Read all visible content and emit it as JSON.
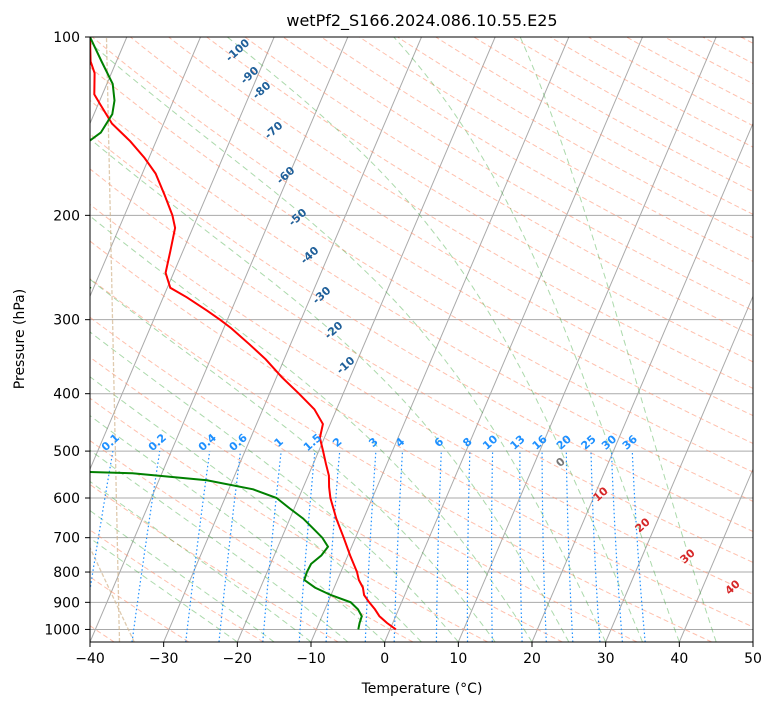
{
  "chart_data": {
    "type": "line",
    "subtype": "skew-T log-P diagram",
    "title": "wetPf2_S166.2024.086.10.55.E25",
    "xlabel": "Temperature (°C)",
    "ylabel": "Pressure (hPa)",
    "xlim": [
      -40,
      50
    ],
    "ylim": [
      1050,
      100
    ],
    "y_scale": "log",
    "grid": true,
    "x_ticks": [
      -40,
      -30,
      -20,
      -10,
      0,
      10,
      20,
      30,
      40,
      50
    ],
    "x_tick_labels": [
      "−40",
      "−30",
      "−20",
      "−10",
      "0",
      "10",
      "20",
      "30",
      "40",
      "50"
    ],
    "y_ticks": [
      100,
      200,
      300,
      400,
      500,
      600,
      700,
      800,
      900,
      1000
    ],
    "y_tick_labels": [
      "100",
      "200",
      "300",
      "400",
      "500",
      "600",
      "700",
      "800",
      "900",
      "1000"
    ],
    "colors": {
      "temperature": "#ff0000",
      "dewpoint": "#008000",
      "isotherm": "#aaaaaa",
      "dry_adiabat": "#ff8c69",
      "moist_adiabat": "#2ca02c",
      "mixing_ratio": "#1e90ff",
      "theta_label": "#1f5f99",
      "reference": "#d2b48c",
      "red_label": "#d62728"
    },
    "series": [
      {
        "key": "temperature",
        "points": [
          {
            "p": 1000,
            "t": 0.8
          },
          {
            "p": 975,
            "t": -0.8
          },
          {
            "p": 950,
            "t": -2.2
          },
          {
            "p": 925,
            "t": -3.2
          },
          {
            "p": 900,
            "t": -4.4
          },
          {
            "p": 875,
            "t": -5.5
          },
          {
            "p": 850,
            "t": -6.1
          },
          {
            "p": 825,
            "t": -7.1
          },
          {
            "p": 800,
            "t": -7.8
          },
          {
            "p": 750,
            "t": -9.7
          },
          {
            "p": 700,
            "t": -11.6
          },
          {
            "p": 650,
            "t": -13.7
          },
          {
            "p": 600,
            "t": -15.7
          },
          {
            "p": 575,
            "t": -16.5
          },
          {
            "p": 550,
            "t": -17.2
          },
          {
            "p": 525,
            "t": -18.3
          },
          {
            "p": 500,
            "t": -19.4
          },
          {
            "p": 475,
            "t": -20.6
          },
          {
            "p": 450,
            "t": -21.0
          },
          {
            "p": 425,
            "t": -23.0
          },
          {
            "p": 400,
            "t": -26.0
          },
          {
            "p": 375,
            "t": -29.3
          },
          {
            "p": 350,
            "t": -32.5
          },
          {
            "p": 330,
            "t": -35.6
          },
          {
            "p": 310,
            "t": -39.0
          },
          {
            "p": 300,
            "t": -41.0
          },
          {
            "p": 290,
            "t": -43.2
          },
          {
            "p": 275,
            "t": -46.8
          },
          {
            "p": 265,
            "t": -49.6
          },
          {
            "p": 250,
            "t": -51.1
          },
          {
            "p": 230,
            "t": -51.7
          },
          {
            "p": 210,
            "t": -52.4
          },
          {
            "p": 200,
            "t": -53.5
          },
          {
            "p": 185,
            "t": -55.7
          },
          {
            "p": 170,
            "t": -58.2
          },
          {
            "p": 160,
            "t": -60.6
          },
          {
            "p": 150,
            "t": -63.5
          },
          {
            "p": 140,
            "t": -67.0
          },
          {
            "p": 130,
            "t": -69.7
          },
          {
            "p": 125,
            "t": -71.1
          },
          {
            "p": 115,
            "t": -72.3
          },
          {
            "p": 110,
            "t": -73.5
          },
          {
            "p": 100,
            "t": -75.0
          }
        ]
      },
      {
        "key": "dewpoint",
        "points": [
          {
            "p": 1000,
            "t": -4.3
          },
          {
            "p": 975,
            "t": -4.5
          },
          {
            "p": 950,
            "t": -4.6
          },
          {
            "p": 925,
            "t": -5.5
          },
          {
            "p": 900,
            "t": -6.9
          },
          {
            "p": 875,
            "t": -10.0
          },
          {
            "p": 850,
            "t": -12.6
          },
          {
            "p": 825,
            "t": -14.5
          },
          {
            "p": 800,
            "t": -14.6
          },
          {
            "p": 775,
            "t": -14.5
          },
          {
            "p": 750,
            "t": -13.6
          },
          {
            "p": 725,
            "t": -13.2
          },
          {
            "p": 700,
            "t": -14.5
          },
          {
            "p": 675,
            "t": -16.3
          },
          {
            "p": 650,
            "t": -18.2
          },
          {
            "p": 625,
            "t": -20.6
          },
          {
            "p": 600,
            "t": -23.0
          },
          {
            "p": 580,
            "t": -26.7
          },
          {
            "p": 560,
            "t": -33.5
          },
          {
            "p": 545,
            "t": -44.0
          },
          {
            "p": 538,
            "t": -60.0
          },
          {
            "p": 290,
            "t": -76.0
          },
          {
            "p": 285,
            "t": -68.0
          },
          {
            "p": 275,
            "t": -61.7
          },
          {
            "p": 265,
            "t": -60.5
          },
          {
            "p": 250,
            "t": -63.3
          },
          {
            "p": 240,
            "t": -65.2
          },
          {
            "p": 230,
            "t": -65.2
          },
          {
            "p": 215,
            "t": -66.4
          },
          {
            "p": 205,
            "t": -69.0
          },
          {
            "p": 195,
            "t": -74.0
          },
          {
            "p": 190,
            "t": -83.0
          },
          {
            "p": 185,
            "t": -84.0
          },
          {
            "p": 175,
            "t": -83.0
          },
          {
            "p": 165,
            "t": -74.5
          },
          {
            "p": 155,
            "t": -70.2
          },
          {
            "p": 145,
            "t": -68.0
          },
          {
            "p": 135,
            "t": -67.5
          },
          {
            "p": 128,
            "t": -68.0
          },
          {
            "p": 120,
            "t": -69.2
          },
          {
            "p": 110,
            "t": -72.0
          },
          {
            "p": 100,
            "t": -75.0
          }
        ]
      }
    ],
    "dry_adiabat_labels": [
      "-100",
      "-90",
      "-80",
      "-70",
      "-60",
      "-50",
      "-40",
      "-30",
      "-20",
      "-10"
    ],
    "mixing_ratio_labels": [
      "0.1",
      "0.2",
      "0.4",
      "0.6",
      "1",
      "1.5",
      "2",
      "3",
      "4",
      "6",
      "8",
      "10",
      "13",
      "16",
      "20",
      "25",
      "30",
      "36"
    ],
    "moist_adiabat_labels": [
      "0",
      "10",
      "20",
      "30",
      "40"
    ]
  }
}
